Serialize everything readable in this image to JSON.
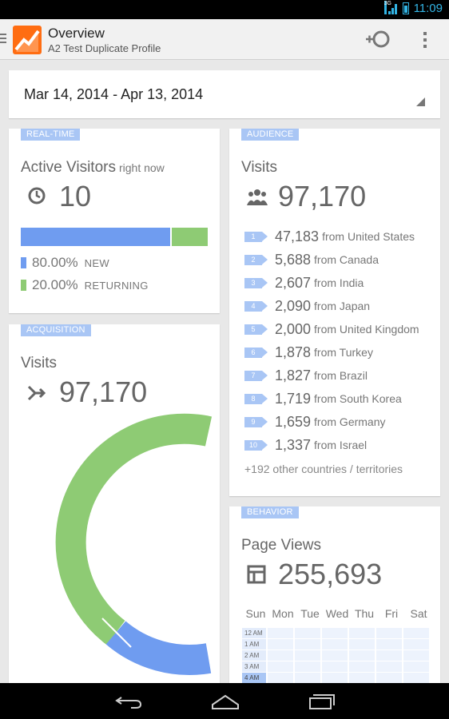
{
  "status_bar": {
    "network": "3G",
    "time": "11:09"
  },
  "action_bar": {
    "title": "Overview",
    "subtitle": "A2 Test Duplicate Profile",
    "icons": [
      "analytics-logo-icon",
      "segment-add-icon",
      "overflow-menu-icon"
    ]
  },
  "date_range": {
    "label": "Mar 14, 2014 - Apr 13, 2014"
  },
  "realtime": {
    "tag": "REAL-TIME",
    "title": "Active Visitors",
    "title_suffix": "right now",
    "value": "10",
    "icon": "clock-icon",
    "new_fraction": 0.8,
    "legend": [
      {
        "pct": "80.00%",
        "label": "NEW",
        "color": "#6f9cf0"
      },
      {
        "pct": "20.00%",
        "label": "RETURNING",
        "color": "#8ecb74"
      }
    ]
  },
  "acquisition": {
    "tag": "ACQUISITION",
    "title": "Visits",
    "value": "97,170",
    "icon": "merge-arrows-icon",
    "donut_colors": [
      "#8ecb74",
      "#6f9cf0"
    ]
  },
  "audience": {
    "tag": "AUDIENCE",
    "title": "Visits",
    "value": "97,170",
    "icon": "people-icon",
    "countries": [
      {
        "rank": "1",
        "value": "47,183",
        "from": "from United States"
      },
      {
        "rank": "2",
        "value": "5,688",
        "from": "from Canada"
      },
      {
        "rank": "3",
        "value": "2,607",
        "from": "from India"
      },
      {
        "rank": "4",
        "value": "2,090",
        "from": "from Japan"
      },
      {
        "rank": "5",
        "value": "2,000",
        "from": "from United Kingdom"
      },
      {
        "rank": "6",
        "value": "1,878",
        "from": "from Turkey"
      },
      {
        "rank": "7",
        "value": "1,827",
        "from": "from Brazil"
      },
      {
        "rank": "8",
        "value": "1,719",
        "from": "from South Korea"
      },
      {
        "rank": "9",
        "value": "1,659",
        "from": "from Germany"
      },
      {
        "rank": "10",
        "value": "1,337",
        "from": "from Israel"
      }
    ],
    "other": "+192 other countries / territories"
  },
  "behavior": {
    "tag": "BEHAVIOR",
    "title": "Page Views",
    "value": "255,693",
    "icon": "table-icon",
    "days": [
      "Sun",
      "Mon",
      "Tue",
      "Wed",
      "Thu",
      "Fri",
      "Sat"
    ],
    "hours": [
      "12 AM",
      "1 AM",
      "2 AM",
      "3 AM",
      "4 AM"
    ]
  },
  "nav_bar": {
    "icons": [
      "back-icon",
      "home-icon",
      "recents-icon"
    ]
  }
}
